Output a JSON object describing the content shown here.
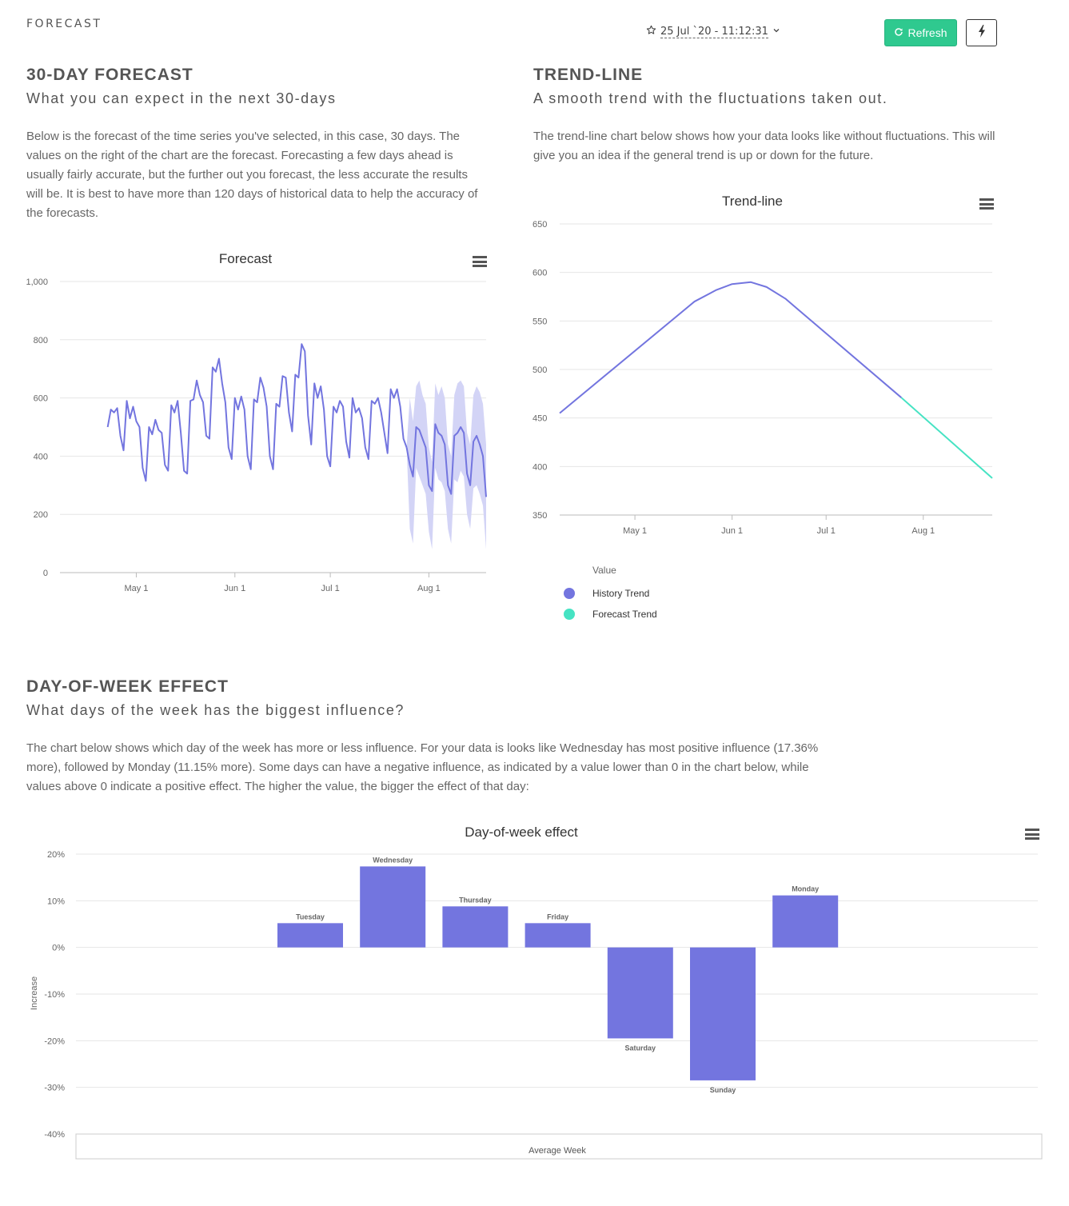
{
  "header": {
    "page_label": "FORECAST",
    "date_label": "25 Jul `20 - 11:12:31",
    "refresh_label": "Refresh"
  },
  "forecast_section": {
    "title": "30-DAY FORECAST",
    "subtitle": "What you can expect in the next 30-days",
    "description": "Below is the forecast of the time series you've selected, in this case, 30 days. The values on the right of the chart are the forecast. Forecasting a few days ahead is usually fairly accurate, but the further out you forecast, the less accurate the results will be. It is best to have more than 120 days of historical data to help the accuracy of the forecasts."
  },
  "trend_section": {
    "title": "TREND-LINE",
    "subtitle": "A smooth trend with the fluctuations taken out.",
    "description": "The trend-line chart below shows how your data looks like without fluctuations. This will give you an idea if the general trend is up or down for the future."
  },
  "dow_section": {
    "title": "DAY-OF-WEEK EFFECT",
    "subtitle": "What days of the week has the biggest influence?",
    "description": "The chart below shows which day of the week has more or less influence. For your data is looks like Wednesday has most positive influence (17.36% more), followed by Monday (11.15% more). Some days can have a negative influence, as indicated by a value lower than 0 in the chart below, while values above 0 indicate a positive effect. The higher the value, the bigger the effect of that day:"
  },
  "colors": {
    "series": "#7375df",
    "band": "#d3d4f6",
    "forecast_trend": "#46e3c3",
    "accent": "#2fc98f"
  },
  "icons": {
    "date_prefix": "star-icon",
    "date_suffix": "chevron-down-icon",
    "refresh": "refresh-icon",
    "action": "bolt-icon",
    "chart_menu": "hamburger-menu-icon"
  },
  "chart_data": [
    {
      "type": "line",
      "title": "Forecast",
      "x_ticks": [
        "May 1",
        "Jun 1",
        "Jul 1",
        "Aug 1"
      ],
      "y_ticks": [
        "1,000",
        "800",
        "600",
        "400",
        "200",
        "0"
      ],
      "ylim": [
        0,
        1000
      ],
      "x_start": "2020-04-07",
      "history": [
        500,
        560,
        550,
        565,
        470,
        420,
        590,
        530,
        570,
        520,
        500,
        360,
        315,
        500,
        475,
        525,
        490,
        480,
        370,
        350,
        575,
        550,
        590,
        480,
        350,
        340,
        590,
        595,
        660,
        610,
        585,
        470,
        460,
        705,
        690,
        735,
        650,
        585,
        430,
        390,
        600,
        560,
        605,
        560,
        400,
        355,
        595,
        585,
        670,
        635,
        570,
        400,
        355,
        580,
        570,
        675,
        670,
        550,
        485,
        680,
        670,
        785,
        760,
        540,
        440,
        650,
        600,
        640,
        560,
        400,
        365,
        570,
        550,
        590,
        570,
        450,
        395,
        600,
        550,
        565,
        530,
        430,
        390,
        590,
        580,
        600,
        550,
        480,
        410,
        630,
        600,
        630,
        570,
        460,
        430
      ],
      "history_end": "2020-07-25",
      "forecast": [
        370,
        330,
        500,
        490,
        460,
        430,
        300,
        280,
        510,
        480,
        470,
        440,
        300,
        270,
        470,
        480,
        500,
        480,
        340,
        300,
        450,
        470,
        440,
        400,
        260
      ],
      "band_upper": [
        600,
        520,
        640,
        660,
        610,
        580,
        430,
        380,
        650,
        610,
        640,
        600,
        440,
        400,
        610,
        650,
        660,
        640,
        480,
        440,
        610,
        640,
        620,
        580,
        440
      ],
      "band_lower": [
        150,
        100,
        360,
        330,
        300,
        270,
        140,
        80,
        360,
        320,
        310,
        280,
        150,
        100,
        320,
        310,
        350,
        330,
        200,
        150,
        290,
        300,
        270,
        230,
        80
      ]
    },
    {
      "type": "line",
      "title": "Trend-line",
      "x_ticks": [
        "May 1",
        "Jun 1",
        "Jul 1",
        "Aug 1"
      ],
      "y_ticks": [
        "650",
        "600",
        "550",
        "500",
        "450",
        "400",
        "350"
      ],
      "ylim": [
        350,
        650
      ],
      "legend_title": "Value",
      "series": [
        {
          "name": "History Trend",
          "points": [
            [
              "2020-04-07",
              455
            ],
            [
              "2020-05-20",
              570
            ],
            [
              "2020-05-27",
              582
            ],
            [
              "2020-06-01",
              588
            ],
            [
              "2020-06-07",
              590
            ],
            [
              "2020-06-12",
              585
            ],
            [
              "2020-06-18",
              573
            ],
            [
              "2020-07-25",
              471
            ]
          ]
        },
        {
          "name": "Forecast Trend",
          "points": [
            [
              "2020-07-25",
              471
            ],
            [
              "2020-08-23",
              388
            ]
          ]
        }
      ]
    },
    {
      "type": "bar",
      "title": "Day-of-week effect",
      "ylabel": "Increase",
      "xlabel": "Average Week",
      "y_ticks": [
        "20%",
        "10%",
        "0%",
        "-10%",
        "-20%",
        "-30%",
        "-40%"
      ],
      "ylim": [
        -40,
        20
      ],
      "categories": [
        "Tuesday",
        "Wednesday",
        "Thursday",
        "Friday",
        "Saturday",
        "Sunday",
        "Monday"
      ],
      "values": [
        5.2,
        17.36,
        8.8,
        5.2,
        -19.5,
        -28.5,
        11.15
      ]
    }
  ]
}
